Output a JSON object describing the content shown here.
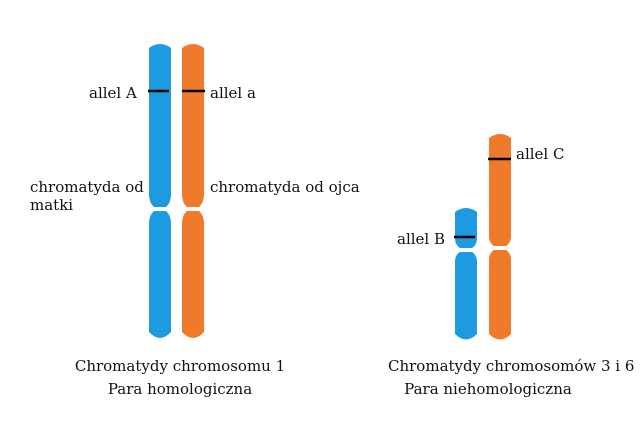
{
  "colors": {
    "maternal": "#1e9be0",
    "paternal": "#f07a2c",
    "allele_mark": "#000000",
    "background": "#ffffff"
  },
  "left_pair": {
    "allele_maternal": "allel A",
    "allele_paternal": "allel a",
    "chromatid_maternal": "chromatyda od matki",
    "chromatid_paternal": "chromatyda od ojca",
    "caption_line1": "Chromatydy chromosomu 1",
    "caption_line2": "Para homologiczna"
  },
  "right_pair": {
    "allele_maternal": "allel B",
    "allele_paternal": "allel C",
    "caption_line1": "Chromatydy chromosomów 3 i 6",
    "caption_line2": "Para niehomologiczna"
  }
}
